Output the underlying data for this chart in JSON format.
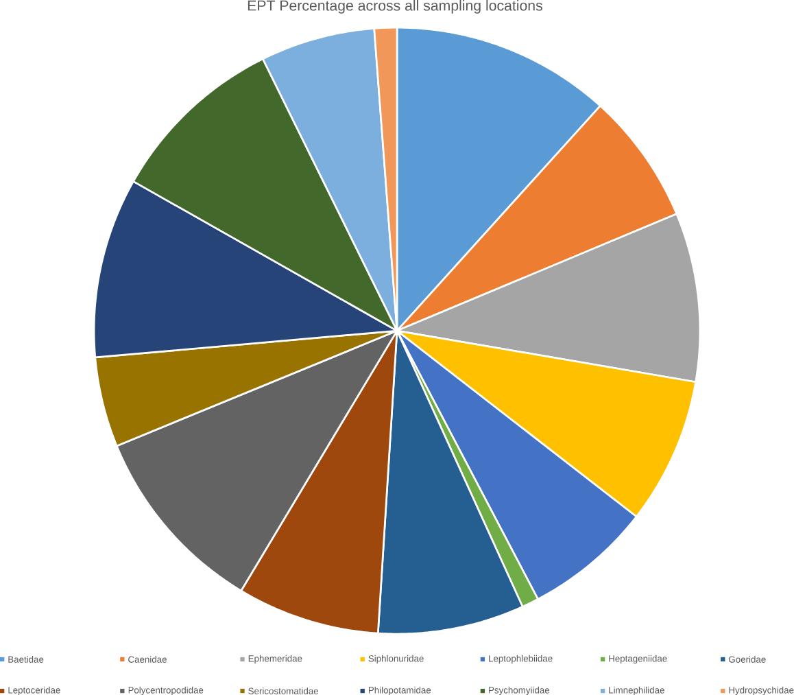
{
  "chart_data": {
    "type": "pie",
    "title": "EPT Percentage across all sampling locations",
    "categories": [
      "Baetidae",
      "Caenidae",
      "Ephemeridae",
      "Siphlonuridae",
      "Leptophlebiidae",
      "Heptageniidae",
      "Goeridae",
      "Leptoceridae",
      "Polycentropodidae",
      "Sericostomatidae",
      "Philopotamidae",
      "Psychomyiidae",
      "Limnephilidae",
      "Hydropsychidae"
    ],
    "values": [
      11.7,
      7.0,
      9.0,
      7.8,
      6.8,
      0.9,
      7.8,
      7.6,
      10.2,
      4.8,
      9.6,
      9.5,
      6.1,
      1.2
    ],
    "colors": [
      "#5b9bd5",
      "#ed7d31",
      "#a5a5a5",
      "#ffc000",
      "#4472c4",
      "#70ad47",
      "#255e91",
      "#9e480e",
      "#636363",
      "#997300",
      "#264478",
      "#43682b",
      "#7cafdd",
      "#f1975a"
    ],
    "legend": "bottom"
  }
}
